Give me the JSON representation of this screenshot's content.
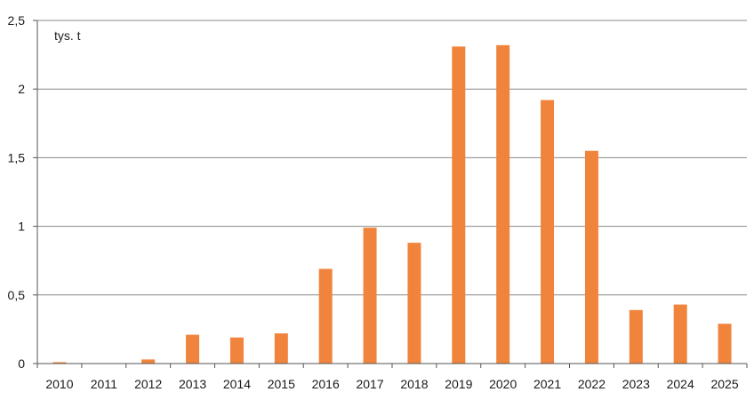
{
  "chart_data": {
    "type": "bar",
    "unit_label": "tys. t",
    "categories": [
      "2010",
      "2011",
      "2012",
      "2013",
      "2014",
      "2015",
      "2016",
      "2017",
      "2018",
      "2019",
      "2020",
      "2021",
      "2022",
      "2023",
      "2024",
      "2025"
    ],
    "values": [
      0.01,
      0.0,
      0.03,
      0.21,
      0.19,
      0.22,
      0.69,
      0.99,
      0.88,
      2.31,
      2.32,
      1.92,
      1.55,
      0.39,
      0.43,
      0.29
    ],
    "y_ticks": [
      0,
      0.5,
      1,
      1.5,
      2,
      2.5
    ],
    "y_tick_labels": [
      "0",
      "0,5",
      "1",
      "1,5",
      "2",
      "2,5"
    ],
    "ylim": [
      0,
      2.5
    ],
    "grid": true,
    "legend": "none",
    "bar_color": "#f0843c",
    "grid_color": "#8a8a8a",
    "axis_color": "#555555"
  }
}
